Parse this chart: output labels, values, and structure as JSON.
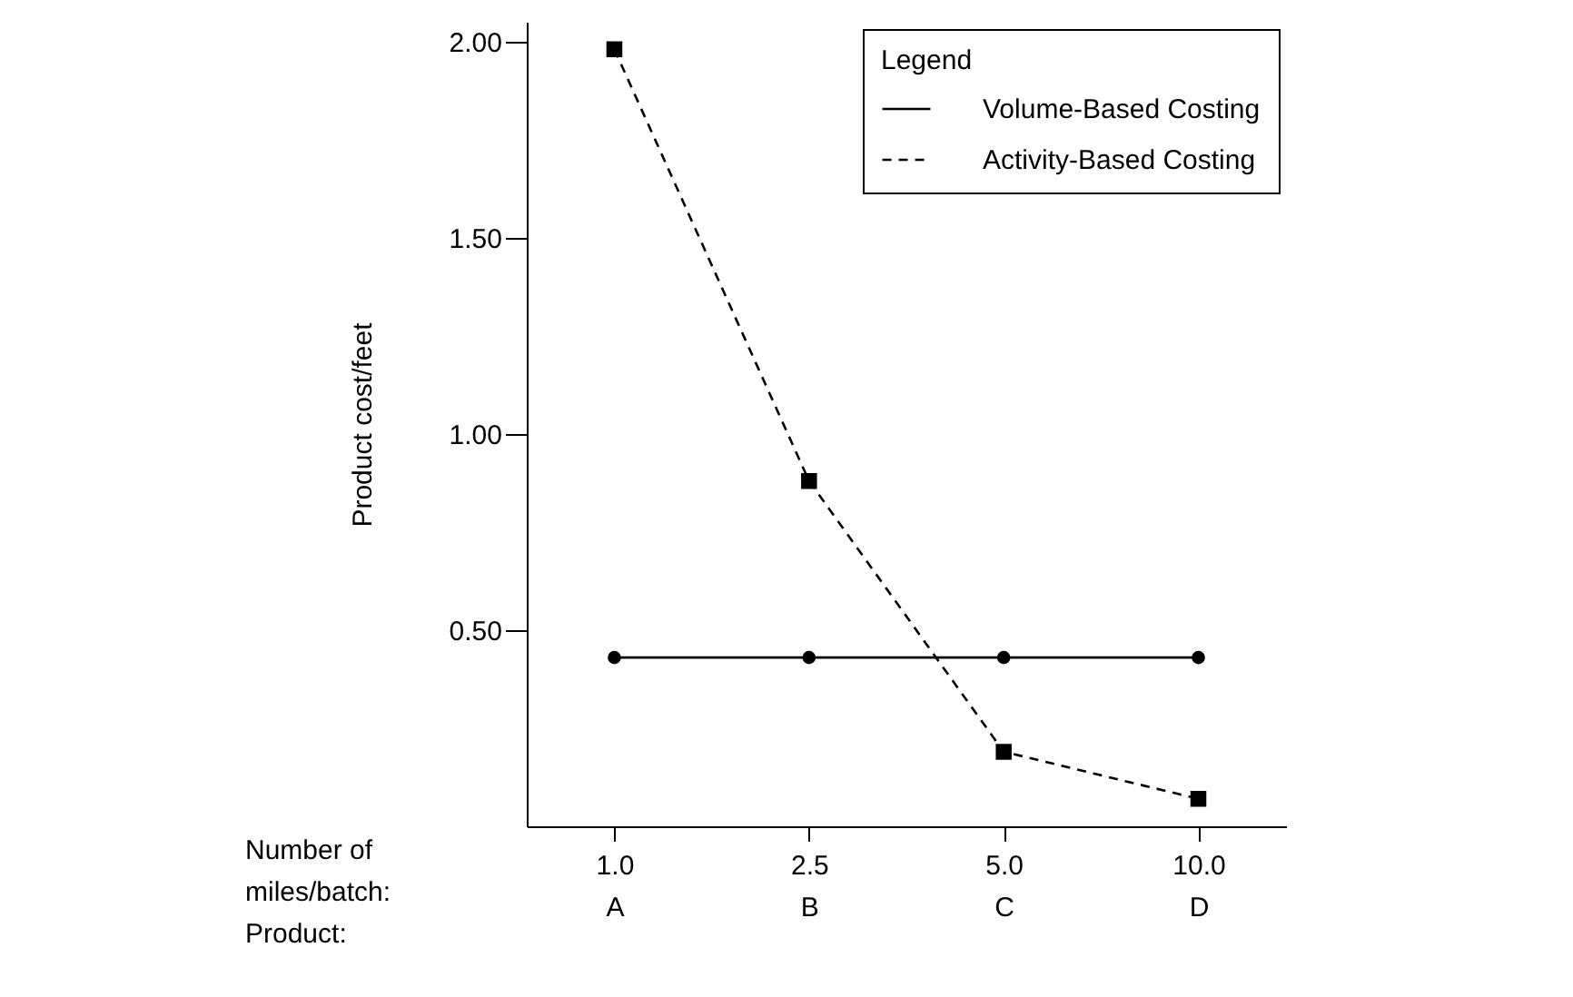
{
  "chart_data": {
    "type": "line",
    "categories": [
      "1.0\nA",
      "2.5\nB",
      "5.0\nC",
      "10.0\nD"
    ],
    "xlabel": "Number of\nmiles/batch:\nProduct:",
    "ylabel": "Product cost/feet",
    "legend_title": "Legend",
    "series": [
      {
        "name": "Volume-Based Costing",
        "color": "#000000",
        "line_style": "solid",
        "marker": "circle",
        "values": [
          0.43,
          0.43,
          0.43,
          0.43
        ]
      },
      {
        "name": "Activity-Based Costing",
        "color": "#000000",
        "line_style": "dashed",
        "marker": "square",
        "values": [
          1.98,
          0.88,
          0.19,
          0.07
        ]
      }
    ],
    "ylim": [
      0,
      2.05
    ],
    "yticks": [
      {
        "value": 0.5,
        "label": "0.50"
      },
      {
        "value": 1.0,
        "label": "1.00"
      },
      {
        "value": 1.5,
        "label": "1.50"
      },
      {
        "value": 2.0,
        "label": "2.00"
      }
    ],
    "grid": false,
    "legend": "top right"
  }
}
